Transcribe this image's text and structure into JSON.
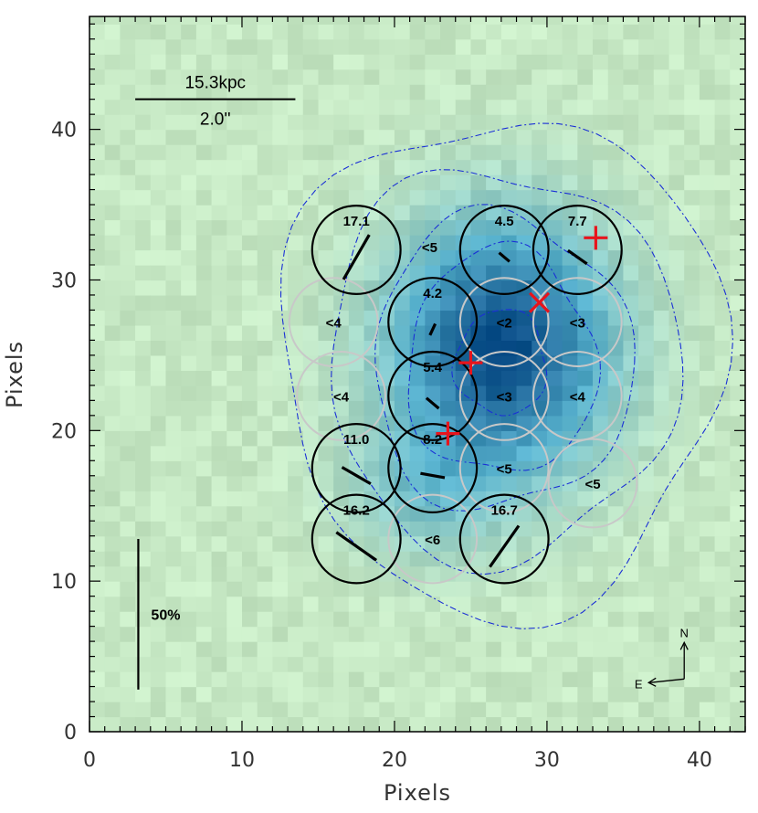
{
  "chart_data": {
    "type": "heatmap",
    "xlabel": "Pixels",
    "ylabel": "Pixels",
    "xlim": [
      0,
      43
    ],
    "ylim": [
      0,
      47.5
    ],
    "x_ticks": [
      "0",
      "10",
      "20",
      "30",
      "40"
    ],
    "y_ticks": [
      "0",
      "10",
      "20",
      "30",
      "40"
    ],
    "colors": {
      "background": "#c6e8c4",
      "core": "#0a4d88",
      "contour": "#1a2fd6",
      "open_aperture": "#c8c8c8",
      "detected_aperture": "#000000",
      "marker": "#e8141c"
    },
    "intensity_peak": {
      "x": 27.0,
      "y": 25.5,
      "amplitude": 1.0,
      "sx": 4.8,
      "sy": 5.6
    },
    "intensity_secondary": {
      "x": 22.0,
      "y": 16.0,
      "amplitude": 0.25,
      "sx": 3.5,
      "sy": 3.0
    },
    "contours": [
      {
        "rx": 14.5,
        "ry": 16.5
      },
      {
        "rx": 11.5,
        "ry": 13.0
      },
      {
        "rx": 8.5,
        "ry": 9.8
      },
      {
        "rx": 6.2,
        "ry": 7.5
      },
      {
        "rx": 3.0,
        "ry": 3.5
      }
    ],
    "contour_center": {
      "x": 27.0,
      "y": 24.5
    },
    "aperture_radius": 2.9,
    "detected_apertures": [
      {
        "x": 17.5,
        "y": 32.0,
        "value": "17.1",
        "pa": 30,
        "frac": 17.1
      },
      {
        "x": 27.2,
        "y": 32.0,
        "value": "4.5",
        "pa": -50,
        "frac": 4.5
      },
      {
        "x": 32.0,
        "y": 32.0,
        "value": "7.7",
        "pa": -55,
        "frac": 7.7
      },
      {
        "x": 22.5,
        "y": 27.2,
        "value": "4.2",
        "pa": 25,
        "frac": 4.2
      },
      {
        "x": 22.5,
        "y": 22.3,
        "value": "5.4",
        "pa": -50,
        "frac": 5.4
      },
      {
        "x": 17.5,
        "y": 17.5,
        "value": "11.0",
        "pa": -60,
        "frac": 11.0
      },
      {
        "x": 22.5,
        "y": 17.5,
        "value": "8.2",
        "pa": -80,
        "frac": 8.2
      },
      {
        "x": 17.5,
        "y": 12.8,
        "value": "16.2",
        "pa": -55,
        "frac": 16.2
      },
      {
        "x": 27.2,
        "y": 12.8,
        "value": "16.7",
        "pa": 35,
        "frac": 16.7
      }
    ],
    "upper_limit_apertures": [
      {
        "x": 22.3,
        "y": 32.2,
        "label": "<5",
        "circle": false
      },
      {
        "x": 16.0,
        "y": 27.2,
        "label": "<4",
        "circle": true
      },
      {
        "x": 27.2,
        "y": 27.2,
        "label": "<2",
        "circle": true
      },
      {
        "x": 32.0,
        "y": 27.2,
        "label": "<3",
        "circle": true
      },
      {
        "x": 16.5,
        "y": 22.3,
        "label": "<4",
        "circle": true
      },
      {
        "x": 27.2,
        "y": 22.3,
        "label": "<3",
        "circle": true
      },
      {
        "x": 32.0,
        "y": 22.3,
        "label": "<4",
        "circle": true
      },
      {
        "x": 27.2,
        "y": 17.5,
        "label": "<5",
        "circle": true
      },
      {
        "x": 33.0,
        "y": 16.5,
        "label": "<5",
        "circle": true
      },
      {
        "x": 22.5,
        "y": 12.8,
        "label": "<6",
        "circle": true
      }
    ],
    "markers": [
      {
        "x": 33.2,
        "y": 32.8,
        "shape": "plus"
      },
      {
        "x": 29.5,
        "y": 28.5,
        "shape": "cross"
      },
      {
        "x": 25.0,
        "y": 24.5,
        "shape": "plus"
      },
      {
        "x": 23.5,
        "y": 19.8,
        "shape": "plus"
      }
    ],
    "scalebar": {
      "x1": 3.0,
      "x2": 13.5,
      "y": 42.0,
      "top_label": "15.3kpc",
      "bottom_label": "2.0''"
    },
    "polarization_scale": {
      "x": 3.2,
      "y1": 2.8,
      "y2": 12.8,
      "label": "50%",
      "value": 50
    },
    "compass": {
      "north": "N",
      "east": "E",
      "x": 39.0,
      "y": 3.5
    }
  }
}
